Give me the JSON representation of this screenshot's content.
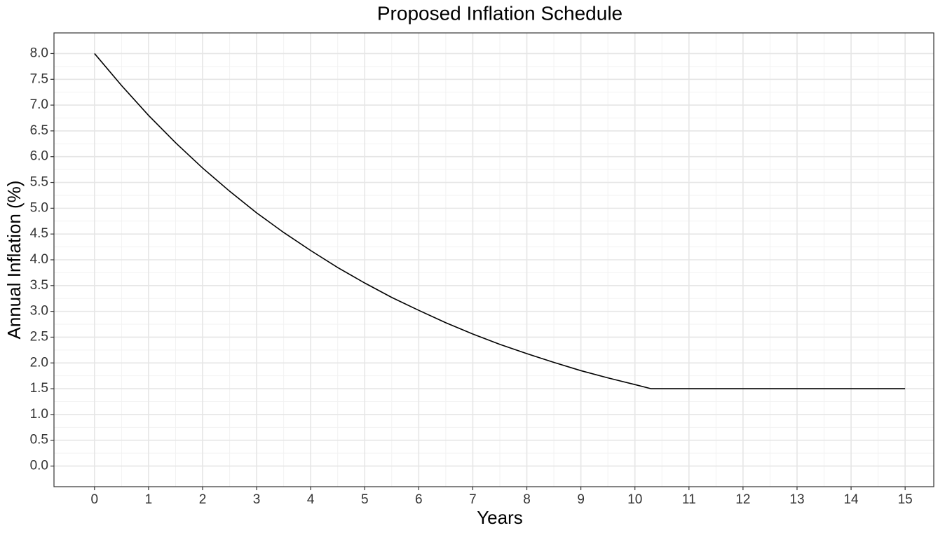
{
  "chart_data": {
    "type": "line",
    "title": "Proposed Inflation Schedule",
    "x_label": "Years",
    "y_label": "Annual Inflation (%)",
    "x": [
      0,
      0.5,
      1,
      1.5,
      2,
      2.5,
      3,
      3.5,
      4,
      4.5,
      5,
      5.5,
      6,
      6.5,
      7,
      7.5,
      8,
      8.5,
      9,
      9.5,
      10,
      10.3,
      11,
      12,
      13,
      14,
      15
    ],
    "series": [
      {
        "color": "#000000",
        "values": [
          8.0,
          7.38,
          6.8,
          6.27,
          5.78,
          5.33,
          4.91,
          4.53,
          4.18,
          3.85,
          3.55,
          3.27,
          3.02,
          2.78,
          2.56,
          2.36,
          2.18,
          2.01,
          1.85,
          1.71,
          1.58,
          1.5,
          1.5,
          1.5,
          1.5,
          1.5,
          1.5
        ]
      }
    ],
    "xlim": [
      -0.75,
      15.53
    ],
    "ylim": [
      -0.4,
      8.4
    ],
    "xticks": [
      0,
      1,
      2,
      3,
      4,
      5,
      6,
      7,
      8,
      9,
      10,
      11,
      12,
      13,
      14,
      15
    ],
    "yticks": [
      {
        "value": 0,
        "label": "0.0"
      },
      0.5,
      {
        "value": 1,
        "label": "1.0"
      },
      1.5,
      {
        "value": 2,
        "label": "2.0"
      },
      2.5,
      {
        "value": 3,
        "label": "3.0"
      },
      3.5,
      {
        "value": 4,
        "label": "4.0"
      },
      4.5,
      {
        "value": 5,
        "label": "5.0"
      },
      5.5,
      {
        "value": 6,
        "label": "6.0"
      },
      6.5,
      {
        "value": 7,
        "label": "7.0"
      },
      7.5,
      {
        "value": 8,
        "label": "8.0"
      }
    ],
    "grid": true,
    "minor_grid": true
  }
}
